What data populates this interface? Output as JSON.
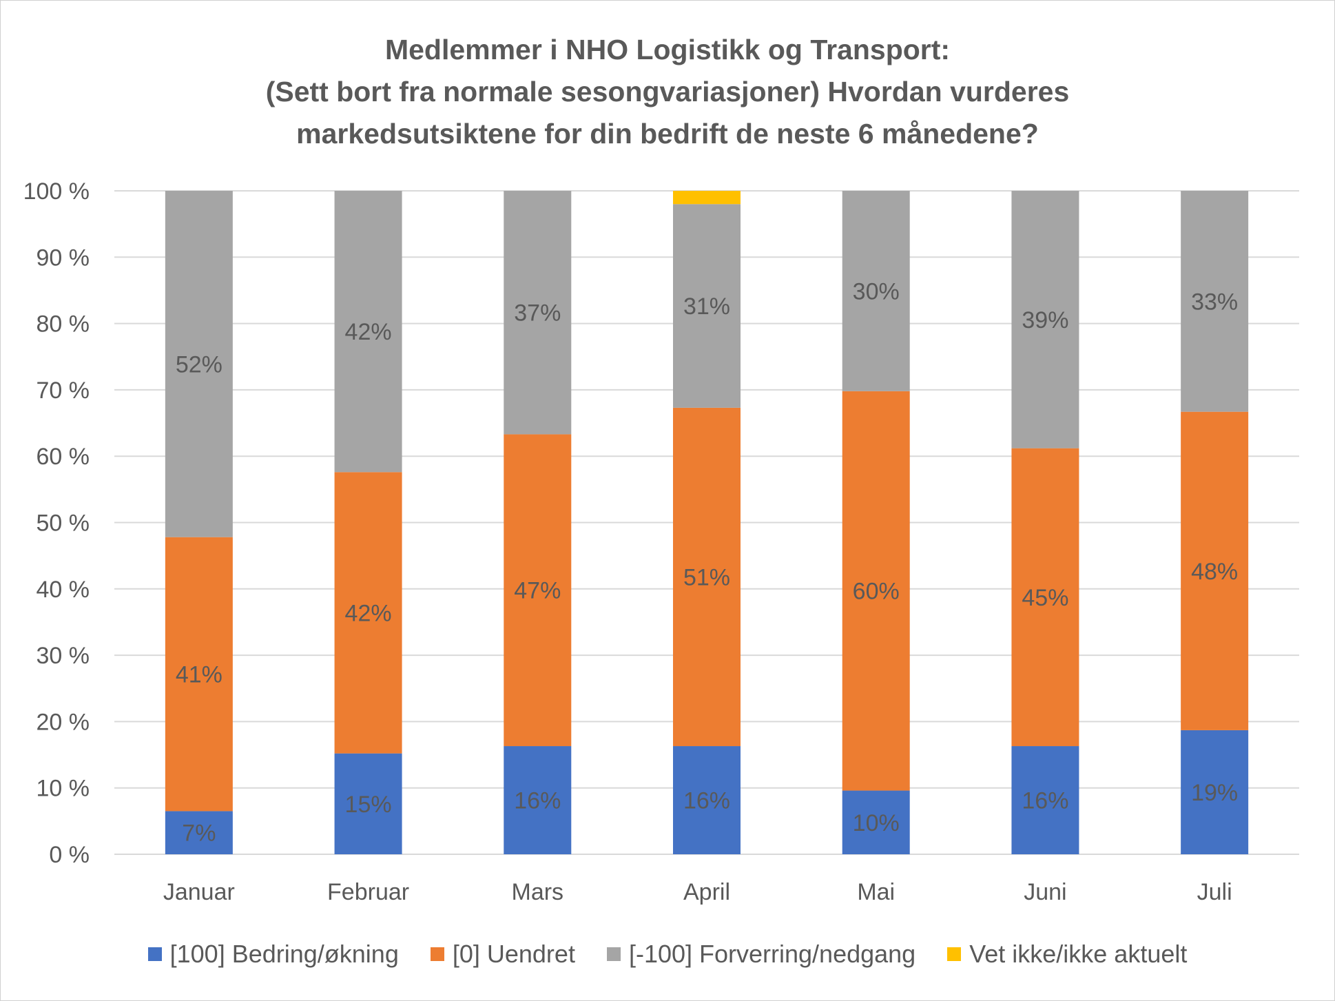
{
  "chart_data": {
    "type": "bar",
    "stacked": true,
    "title": [
      "Medlemmer i NHO Logistikk og Transport:",
      "(Sett bort fra normale sesongvariasjoner) Hvordan vurderes",
      "markedsutsiktene for din bedrift de neste 6 månedene?"
    ],
    "categories": [
      "Januar",
      "Februar",
      "Mars",
      "April",
      "Mai",
      "Juni",
      "Juli"
    ],
    "series": [
      {
        "name": "[100] Bedring/økning",
        "color": "#4472C4",
        "values": [
          6.5,
          15.2,
          16.3,
          16.3,
          9.6,
          16.3,
          18.7
        ],
        "labels": [
          "7%",
          "15%",
          "16%",
          "16%",
          "10%",
          "16%",
          "19%"
        ]
      },
      {
        "name": "[0] Uendret",
        "color": "#ED7D31",
        "values": [
          41.3,
          42.4,
          47.0,
          51.0,
          60.2,
          44.9,
          48.0
        ],
        "labels": [
          "41%",
          "42%",
          "47%",
          "51%",
          "60%",
          "45%",
          "48%"
        ]
      },
      {
        "name": "[-100] Forverring/nedgang",
        "color": "#A5A5A5",
        "values": [
          52.2,
          42.4,
          36.7,
          30.7,
          30.2,
          38.8,
          33.3
        ],
        "labels": [
          "52%",
          "42%",
          "37%",
          "31%",
          "30%",
          "39%",
          "33%"
        ]
      },
      {
        "name": "Vet ikke/ikke aktuelt",
        "color": "#FFC000",
        "values": [
          0,
          0,
          0,
          2.0,
          0,
          0,
          0
        ],
        "labels": [
          "",
          "",
          "",
          "",
          "",
          "",
          ""
        ]
      }
    ],
    "ylim": [
      0,
      100
    ],
    "yticks": [
      0,
      10,
      20,
      30,
      40,
      50,
      60,
      70,
      80,
      90,
      100
    ],
    "ytick_labels": [
      "0 %",
      "10 %",
      "20 %",
      "30 %",
      "40 %",
      "50 %",
      "60 %",
      "70 %",
      "80 %",
      "90 %",
      "100 %"
    ],
    "grid": true,
    "legend_position": "bottom",
    "gridline_color": "#D9D9D9",
    "text_color": "#595959"
  }
}
